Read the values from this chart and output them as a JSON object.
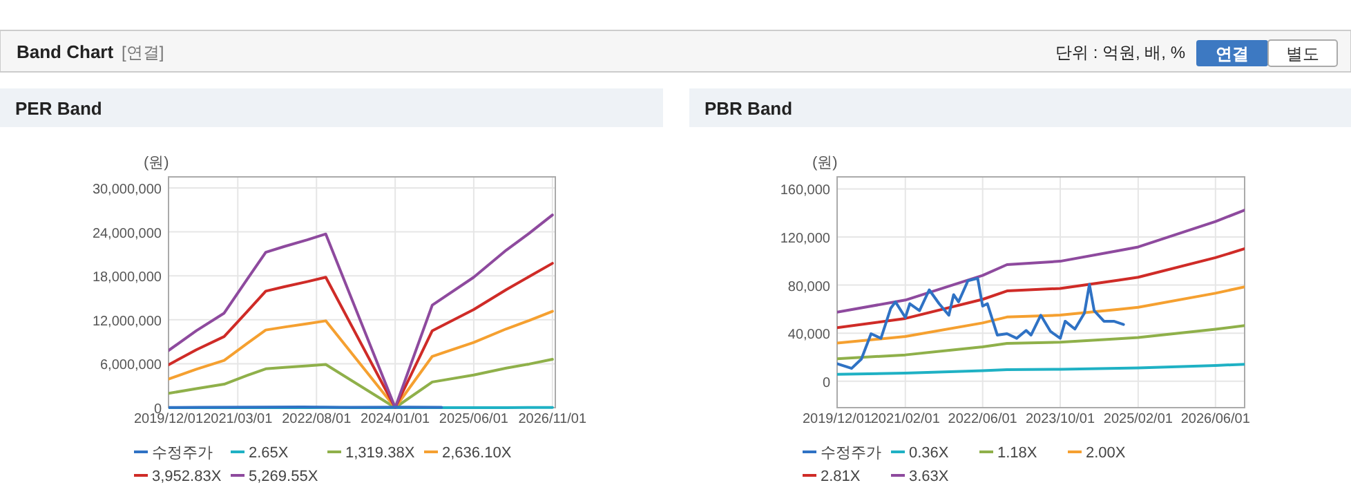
{
  "chart_data": [
    {
      "type": "other",
      "title": "Band Chart",
      "subtitle": "[연결]",
      "annotations": [
        "단위 : 억원, 배, %",
        "연결",
        "별도"
      ]
    },
    {
      "type": "line",
      "title": "PER Band",
      "ylabel": "(원)",
      "legend": "bottom",
      "grid": true,
      "xlim": [
        "2019-12-01",
        "2026-11-20"
      ],
      "xticks": [
        {
          "value": "2019-12-01",
          "label": "2019/12/01"
        },
        {
          "value": "2021-03-01",
          "label": "2021/03/01"
        },
        {
          "value": "2022-08-01",
          "label": "2022/08/01"
        },
        {
          "value": "2024-01-01",
          "label": "2024/01/01"
        },
        {
          "value": "2025-06-01",
          "label": "2025/06/01"
        },
        {
          "value": "2026-11-01",
          "label": "2026/11/01"
        }
      ],
      "ylim": [
        0,
        31500000
      ],
      "yticks": [
        0,
        {
          "value": 6000000,
          "label": "6,000,000"
        },
        {
          "value": 12000000,
          "label": "12,000,000"
        },
        {
          "value": 18000000,
          "label": "18,000,000"
        },
        {
          "value": 24000000,
          "label": "24,000,000"
        },
        {
          "value": 30000000,
          "label": "30,000,000"
        }
      ],
      "x": [
        "2019-12-01",
        "2020-06-01",
        "2020-12-01",
        "2021-05-01",
        "2021-09-01",
        "2022-01-01",
        "2022-06-01",
        "2022-10-01",
        "2024-01-01",
        "2024-09-01",
        "2025-06-01",
        "2026-01-01",
        "2026-06-01",
        "2026-11-01"
      ],
      "series": [
        {
          "name": "2.65X",
          "color": "#1fb1c4",
          "values": [
            3900,
            5300,
            6500,
            8800,
            10600,
            11000,
            11500,
            11900,
            0,
            7000,
            8900,
            10800,
            12000,
            13200
          ]
        },
        {
          "name": "1,319.38X",
          "color": "#8fb04a",
          "values": [
            1950000,
            2600000,
            3200000,
            4400000,
            5300000,
            5500000,
            5700000,
            5900000,
            0,
            3500000,
            4450000,
            5400000,
            5950000,
            6600000
          ]
        },
        {
          "name": "2,636.10X",
          "color": "#f5a030",
          "values": [
            3900000,
            5250000,
            6450000,
            8750000,
            10600000,
            11000000,
            11450000,
            11850000,
            0,
            7000000,
            8900000,
            10750000,
            11900000,
            13150000
          ]
        },
        {
          "name": "3,952.83X",
          "color": "#cf2b27",
          "values": [
            5850000,
            7900000,
            9700000,
            13100000,
            15900000,
            16500000,
            17200000,
            17800000,
            0,
            10500000,
            13400000,
            16100000,
            17900000,
            19700000
          ]
        },
        {
          "name": "5,269.55X",
          "color": "#8e4a9e",
          "values": [
            7800000,
            10500000,
            12900000,
            17500000,
            21200000,
            22000000,
            22900000,
            23700000,
            0,
            14000000,
            17800000,
            21500000,
            23800000,
            26300000
          ]
        },
        {
          "name": "수정주가",
          "color": "#2f72c4",
          "x": [
            "2019-12-01",
            "2020-07-01",
            "2021-07-01",
            "2022-05-01",
            "2023-01-01",
            "2024-04-01",
            "2024-11-01"
          ],
          "values": [
            14600,
            39500,
            76000,
            85600,
            35700,
            80600,
            47200
          ]
        }
      ]
    },
    {
      "type": "line",
      "title": "PBR Band",
      "ylabel": "(원)",
      "legend": "bottom",
      "grid": true,
      "xlim": [
        "2019-12-01",
        "2026-12-01"
      ],
      "xticks": [
        {
          "value": "2019-12-01",
          "label": "2019/12/01"
        },
        {
          "value": "2021-02-01",
          "label": "2021/02/01"
        },
        {
          "value": "2022-06-01",
          "label": "2022/06/01"
        },
        {
          "value": "2023-10-01",
          "label": "2023/10/01"
        },
        {
          "value": "2025-02-01",
          "label": "2025/02/01"
        },
        {
          "value": "2026-06-01",
          "label": "2026/06/01"
        }
      ],
      "ylim": [
        -22000,
        170000
      ],
      "yticks": [
        0,
        {
          "value": 40000,
          "label": "40,000"
        },
        {
          "value": 80000,
          "label": "80,000"
        },
        {
          "value": 120000,
          "label": "120,000"
        },
        {
          "value": 160000,
          "label": "160,000"
        }
      ],
      "x": [
        "2019-12-01",
        "2021-02-01",
        "2022-06-01",
        "2022-11-01",
        "2023-10-01",
        "2024-10-01",
        "2025-02-01",
        "2026-06-01",
        "2026-12-01"
      ],
      "series": [
        {
          "name": "0.36X",
          "color": "#1fb1c4",
          "values": [
            5700,
            6700,
            8700,
            9600,
            9900,
            10800,
            11100,
            13100,
            14100
          ]
        },
        {
          "name": "1.18X",
          "color": "#8fb04a",
          "values": [
            18700,
            21900,
            28600,
            31500,
            32400,
            35300,
            36300,
            43200,
            46300
          ]
        },
        {
          "name": "2.00X",
          "color": "#f5a030",
          "values": [
            31700,
            37200,
            48500,
            53400,
            55000,
            59800,
            61500,
            73200,
            78500
          ]
        },
        {
          "name": "2.81X",
          "color": "#cf2b27",
          "values": [
            44500,
            52200,
            68100,
            75100,
            77200,
            84100,
            86500,
            102800,
            110200
          ]
        },
        {
          "name": "3.63X",
          "color": "#8e4a9e",
          "values": [
            57500,
            67500,
            88000,
            97000,
            99800,
            108600,
            111700,
            132800,
            142400
          ]
        },
        {
          "name": "수정주가",
          "color": "#2f72c4",
          "x": [
            "2019-12-01",
            "2020-03-01",
            "2020-05-01",
            "2020-07-01",
            "2020-09-01",
            "2020-11-01",
            "2020-12-01",
            "2021-02-01",
            "2021-03-01",
            "2021-05-01",
            "2021-07-01",
            "2021-09-01",
            "2021-11-01",
            "2021-12-01",
            "2022-01-01",
            "2022-03-01",
            "2022-05-01",
            "2022-06-01",
            "2022-07-01",
            "2022-09-01",
            "2022-11-01",
            "2023-01-01",
            "2023-03-01",
            "2023-04-01",
            "2023-06-01",
            "2023-08-01",
            "2023-10-01",
            "2023-11-01",
            "2024-01-01",
            "2024-03-01",
            "2024-04-01",
            "2024-05-01",
            "2024-07-01",
            "2024-09-01",
            "2024-11-01"
          ],
          "values": [
            14600,
            10700,
            18400,
            39500,
            35700,
            60600,
            66000,
            53000,
            64500,
            58700,
            76000,
            64500,
            54900,
            72000,
            66000,
            83600,
            85600,
            62500,
            64500,
            38400,
            39500,
            35700,
            42200,
            38400,
            54900,
            41400,
            35700,
            49900,
            43400,
            56800,
            80600,
            58700,
            49900,
            49900,
            47200
          ]
        }
      ]
    }
  ]
}
